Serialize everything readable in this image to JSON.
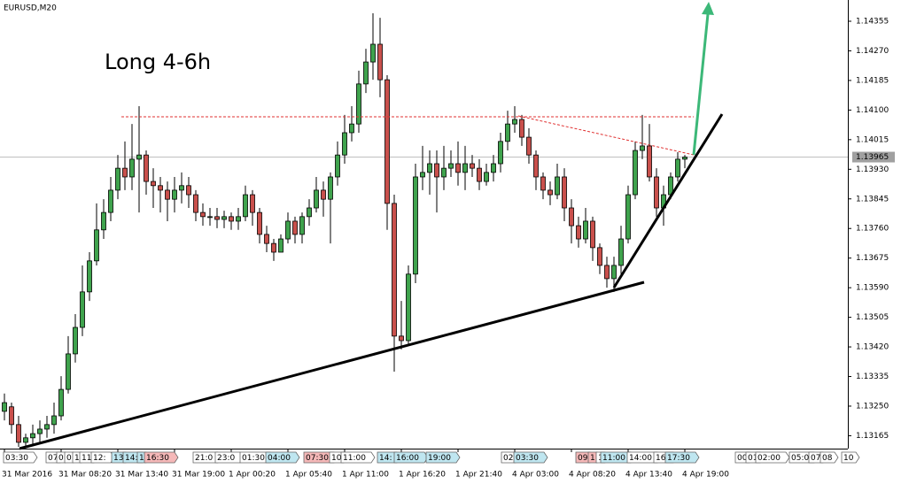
{
  "chart_data": {
    "type": "candlestick",
    "title": "EURUSD,M20",
    "annotation": {
      "text": "Long 4-6h",
      "color": "#3cb83c"
    },
    "up_color": "#3fa34d",
    "down_color": "#c9504c",
    "categories": [
      "31 Mar 2016",
      null,
      null,
      null,
      null,
      null,
      null,
      null,
      "31 Mar 08:20",
      null,
      null,
      null,
      null,
      null,
      null,
      null,
      "31 Mar 13:40",
      null,
      null,
      null,
      null,
      null,
      null,
      null,
      "31 Mar 19:00",
      null,
      null,
      null,
      null,
      null,
      null,
      null,
      "1 Apr 00:20",
      null,
      null,
      null,
      null,
      null,
      null,
      null,
      "1 Apr 05:40",
      null,
      null,
      null,
      null,
      null,
      null,
      null,
      "1 Apr 11:00",
      null,
      null,
      null,
      null,
      null,
      null,
      null,
      "1 Apr 16:20",
      null,
      null,
      null,
      null,
      null,
      null,
      null,
      "1 Apr 21:40",
      null,
      null,
      null,
      null,
      null,
      null,
      null,
      "4 Apr 03:00",
      null,
      null,
      null,
      null,
      null,
      null,
      null,
      "4 Apr 08:20",
      null,
      null,
      null,
      null,
      null,
      null,
      null,
      "4 Apr 13:40",
      null,
      null,
      null,
      null,
      null,
      null,
      null,
      "4 Apr 19:00"
    ],
    "open": [
      1.13235,
      1.13248,
      1.13197,
      1.13146,
      1.13159,
      1.13171,
      1.13184,
      1.13197,
      1.13222,
      1.13298,
      1.134,
      1.13476,
      1.13578,
      1.13667,
      1.13756,
      1.13806,
      1.1387,
      1.13933,
      1.13908,
      1.13959,
      1.13971,
      1.13895,
      1.13883,
      1.1387,
      1.13844,
      1.1387,
      1.13883,
      1.13857,
      1.13806,
      1.13794,
      1.13794,
      1.13786,
      1.13794,
      1.13781,
      1.13794,
      1.13857,
      1.13806,
      1.13743,
      1.13717,
      1.13692,
      1.1373,
      1.13781,
      1.13743,
      1.13794,
      1.13819,
      1.1387,
      1.13844,
      1.13908,
      1.13971,
      1.14035,
      1.1406,
      1.14175,
      1.14238,
      1.14289,
      1.14187,
      1.13832,
      1.13451,
      1.13438,
      1.13629,
      1.13908,
      1.13921,
      1.13946,
      1.13908,
      1.13933,
      1.13946,
      1.13921,
      1.13946,
      1.13933,
      1.13895,
      1.13921,
      1.13946,
      1.1401,
      1.1406,
      1.14073,
      1.14022,
      1.13971,
      1.13908,
      1.1387,
      1.13857,
      1.13908,
      1.13819,
      1.13768,
      1.1373,
      1.13781,
      1.13705,
      1.13654,
      1.13616,
      1.13654,
      1.1373,
      1.13857,
      1.13984,
      1.13997,
      1.13908,
      1.13819,
      1.13857,
      1.13908,
      1.13959
    ],
    "high": [
      1.13286,
      1.1326,
      1.13222,
      1.13171,
      1.13197,
      1.13209,
      1.13222,
      1.1326,
      1.13336,
      1.13451,
      1.13514,
      1.13654,
      1.13692,
      1.13832,
      1.13844,
      1.13908,
      1.13971,
      1.1401,
      1.1406,
      1.14111,
      1.13984,
      1.13933,
      1.13908,
      1.13895,
      1.13908,
      1.13921,
      1.13908,
      1.1387,
      1.13832,
      1.13819,
      1.13819,
      1.13811,
      1.13806,
      1.13819,
      1.13883,
      1.1387,
      1.13819,
      1.13768,
      1.1373,
      1.13743,
      1.13806,
      1.13794,
      1.13806,
      1.13844,
      1.13908,
      1.13895,
      1.13921,
      1.1401,
      1.14086,
      1.14111,
      1.14213,
      1.14276,
      1.14378,
      1.14365,
      1.142,
      1.13857,
      1.13552,
      1.13654,
      1.13946,
      1.13997,
      1.13984,
      1.13984,
      1.13997,
      1.13984,
      1.1401,
      1.13997,
      1.13971,
      1.13959,
      1.13946,
      1.13971,
      1.14035,
      1.14098,
      1.14111,
      1.14086,
      1.14048,
      1.13984,
      1.13921,
      1.13895,
      1.13946,
      1.13933,
      1.13844,
      1.13794,
      1.13819,
      1.13794,
      1.13717,
      1.13679,
      1.13679,
      1.13768,
      1.13883,
      1.1401,
      1.14086,
      1.1406,
      1.13933,
      1.13883,
      1.13921,
      1.13979,
      1.13971
    ],
    "low": [
      1.13209,
      1.13171,
      1.13133,
      1.13133,
      1.13141,
      1.13146,
      1.13159,
      1.13171,
      1.13209,
      1.13286,
      1.13375,
      1.13451,
      1.13552,
      1.13654,
      1.1373,
      1.13781,
      1.13844,
      1.1387,
      1.1387,
      1.13806,
      1.13857,
      1.13819,
      1.13806,
      1.13781,
      1.13806,
      1.13832,
      1.13819,
      1.13781,
      1.13768,
      1.13768,
      1.13761,
      1.13761,
      1.13756,
      1.13756,
      1.13781,
      1.13768,
      1.13717,
      1.13692,
      1.13667,
      1.13692,
      1.13717,
      1.13717,
      1.13717,
      1.13768,
      1.13806,
      1.13794,
      1.13717,
      1.13883,
      1.13946,
      1.1401,
      1.14035,
      1.14149,
      1.14187,
      1.14137,
      1.13756,
      1.13349,
      1.13413,
      1.13425,
      1.13603,
      1.1387,
      1.13857,
      1.13806,
      1.1387,
      1.13908,
      1.13883,
      1.1387,
      1.13908,
      1.1387,
      1.13883,
      1.13895,
      1.13921,
      1.13984,
      1.14035,
      1.13997,
      1.13946,
      1.1387,
      1.13844,
      1.13827,
      1.13844,
      1.13781,
      1.13717,
      1.13705,
      1.13717,
      1.13667,
      1.13629,
      1.1359,
      1.13578,
      1.13629,
      1.13717,
      1.13844,
      1.13959,
      1.13895,
      1.13794,
      1.13768,
      1.13844,
      1.13895,
      1.13933
    ],
    "close": [
      1.1326,
      1.13197,
      1.13146,
      1.13159,
      1.13171,
      1.13184,
      1.13197,
      1.13222,
      1.13298,
      1.134,
      1.13476,
      1.13578,
      1.13667,
      1.13756,
      1.13806,
      1.1387,
      1.13933,
      1.13908,
      1.13959,
      1.13971,
      1.13895,
      1.13883,
      1.1387,
      1.13844,
      1.1387,
      1.13883,
      1.13857,
      1.13806,
      1.13794,
      1.13794,
      1.13786,
      1.13794,
      1.13781,
      1.13794,
      1.13857,
      1.13806,
      1.13743,
      1.13717,
      1.13692,
      1.1373,
      1.13781,
      1.13743,
      1.13794,
      1.13819,
      1.1387,
      1.13844,
      1.13908,
      1.13971,
      1.14035,
      1.1406,
      1.14175,
      1.14238,
      1.14289,
      1.14187,
      1.13832,
      1.13451,
      1.13438,
      1.13629,
      1.13908,
      1.13921,
      1.13946,
      1.13908,
      1.13933,
      1.13946,
      1.13921,
      1.13946,
      1.13933,
      1.13895,
      1.13921,
      1.13946,
      1.1401,
      1.1406,
      1.14073,
      1.14022,
      1.13971,
      1.13908,
      1.1387,
      1.13857,
      1.13908,
      1.13819,
      1.13768,
      1.1373,
      1.13781,
      1.13705,
      1.13654,
      1.13616,
      1.13654,
      1.1373,
      1.13857,
      1.13984,
      1.13997,
      1.13908,
      1.13819,
      1.13857,
      1.13908,
      1.13959,
      1.13965
    ],
    "current_price": 1.13965,
    "ylim": [
      1.13128,
      1.14416
    ],
    "yticks": [
      1.14355,
      {
        "value": 1.1427,
        "label": "1.14270"
      },
      1.14185,
      {
        "value": 1.141,
        "label": "1.14100"
      },
      1.14015,
      {
        "value": 1.1393,
        "label": "1.13930"
      },
      1.13845,
      {
        "value": 1.1376,
        "label": "1.13760"
      },
      1.13675,
      {
        "value": 1.1359,
        "label": "1.13590"
      },
      1.13505,
      {
        "value": 1.1342,
        "label": "1.13420"
      },
      1.13335,
      {
        "value": 1.1325,
        "label": "1.13250"
      },
      1.13165
    ],
    "tags": [
      {
        "text": "03:30",
        "color": "#ffffff"
      },
      {
        "text": "07",
        "color": "#ffffff"
      },
      {
        "text": "0",
        "color": "#ffffff"
      },
      {
        "text": "0",
        "color": "#ffffff"
      },
      {
        "text": "1",
        "color": "#ffffff"
      },
      {
        "text": "11",
        "color": "#ffffff"
      },
      {
        "text": "12:",
        "color": "#ffffff"
      },
      {
        "text": "13",
        "color": "#bfe6f0"
      },
      {
        "text": "14:",
        "color": "#bfe6f0"
      },
      {
        "text": "1",
        "color": "#bfe6f0"
      },
      {
        "text": "16:30",
        "color": "#f5b8b8"
      },
      {
        "text": "21:0",
        "color": "#ffffff"
      },
      {
        "text": "23:0",
        "color": "#ffffff"
      },
      {
        "text": "01:30",
        "color": "#ffffff"
      },
      {
        "text": "04:00",
        "color": "#bfe6f0"
      },
      {
        "text": "07:30",
        "color": "#f5b8b8"
      },
      {
        "text": "10",
        "color": "#ffffff"
      },
      {
        "text": "11:00",
        "color": "#ffffff"
      },
      {
        "text": "14:",
        "color": "#bfe6f0"
      },
      {
        "text": "16:00",
        "color": "#bfe6f0"
      },
      {
        "text": "19:00",
        "color": "#bfe6f0"
      },
      {
        "text": "02",
        "color": "#ffffff"
      },
      {
        "text": "03:30",
        "color": "#bfe6f0"
      },
      {
        "text": "09",
        "color": "#f5b8b8"
      },
      {
        "text": "1",
        "color": "#f5b8b8"
      },
      {
        "text": "1",
        "color": "#ffffff"
      },
      {
        "text": "11:00",
        "color": "#bfe6f0"
      },
      {
        "text": "14:00",
        "color": "#ffffff"
      },
      {
        "text": "16:",
        "color": "#ffffff"
      },
      {
        "text": "17:30",
        "color": "#bfe6f0"
      },
      {
        "text": "00",
        "color": "#ffffff"
      },
      {
        "text": "01",
        "color": "#ffffff"
      },
      {
        "text": "02:00",
        "color": "#ffffff"
      },
      {
        "text": "05:0",
        "color": "#ffffff"
      },
      {
        "text": "07",
        "color": "#ffffff"
      },
      {
        "text": "08",
        "color": "#ffffff"
      },
      {
        "text": "10",
        "color": "#ffffff"
      }
    ]
  }
}
